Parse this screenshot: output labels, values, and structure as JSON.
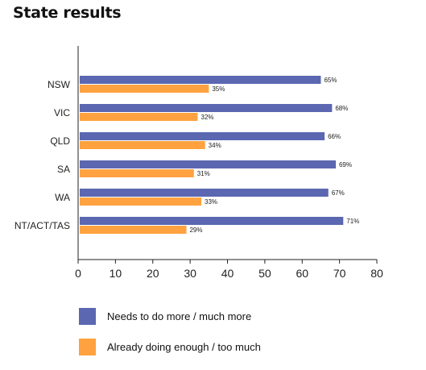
{
  "chart_data": {
    "type": "bar",
    "orientation": "horizontal",
    "title": "State results",
    "categories": [
      "NSW",
      "VIC",
      "QLD",
      "SA",
      "WA",
      "NT/ACT/TAS"
    ],
    "series": [
      {
        "name": "Needs to do more / much more",
        "color": "#5b67b1",
        "values": [
          65,
          68,
          66,
          69,
          67,
          71
        ]
      },
      {
        "name": "Already doing enough / too much",
        "color": "#ffa23f",
        "values": [
          35,
          32,
          34,
          31,
          33,
          29
        ]
      }
    ],
    "xlim": [
      0,
      80
    ],
    "xticks": [
      0,
      10,
      20,
      30,
      40,
      50,
      60,
      70,
      80
    ],
    "value_suffix": "%",
    "grid": false,
    "legend_position": "bottom"
  }
}
